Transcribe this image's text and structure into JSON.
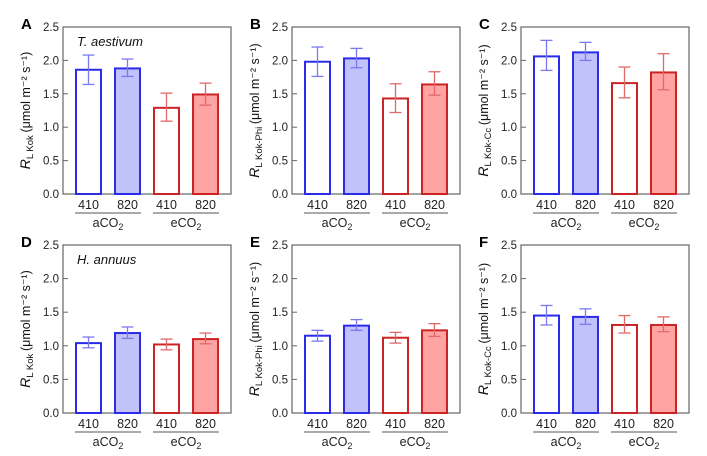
{
  "figure": {
    "colors": {
      "a_edge": "#2b2bea",
      "a_fill": "#c2c2fa",
      "a_err": "#7a7af0",
      "e_edge": "#cc2424",
      "e_fill": "#ffa3a3",
      "e_err": "#e06a6a",
      "frame": "#666666"
    }
  },
  "chart_data": [
    {
      "panel": "A",
      "type": "bar",
      "annotation": "T. aestivum",
      "ylabel": {
        "main": "R",
        "sub": "L Kok",
        "unit": "(μmol m⁻² s⁻¹)"
      },
      "categories": [
        "410",
        "820",
        "410",
        "820"
      ],
      "groups": [
        {
          "label": "aCO",
          "sub": "2"
        },
        {
          "label": "eCO",
          "sub": "2"
        }
      ],
      "fills": [
        "open",
        "filled",
        "open",
        "filled"
      ],
      "values": [
        1.86,
        1.88,
        1.29,
        1.49
      ],
      "err_upper": [
        2.08,
        2.02,
        1.51,
        1.66
      ],
      "err_lower": [
        1.64,
        1.76,
        1.09,
        1.33
      ],
      "ylim": [
        0,
        2.5
      ],
      "yticks": [
        "0.0",
        "0.5",
        "1.0",
        "1.5",
        "2.0",
        "2.5"
      ]
    },
    {
      "panel": "B",
      "type": "bar",
      "annotation": "",
      "ylabel": {
        "main": "R",
        "sub": "L Kok-Phi",
        "unit": "(μmol m⁻² s⁻¹)"
      },
      "categories": [
        "410",
        "820",
        "410",
        "820"
      ],
      "groups": [
        {
          "label": "aCO",
          "sub": "2"
        },
        {
          "label": "eCO",
          "sub": "2"
        }
      ],
      "fills": [
        "open",
        "filled",
        "open",
        "filled"
      ],
      "values": [
        1.98,
        2.03,
        1.43,
        1.64
      ],
      "err_upper": [
        2.2,
        2.18,
        1.65,
        1.83
      ],
      "err_lower": [
        1.76,
        1.89,
        1.22,
        1.48
      ],
      "ylim": [
        0,
        2.5
      ],
      "yticks": [
        "0.0",
        "0.5",
        "1.0",
        "1.5",
        "2.0",
        "2.5"
      ]
    },
    {
      "panel": "C",
      "type": "bar",
      "annotation": "",
      "ylabel": {
        "main": "R",
        "sub": "L Kok-Cc",
        "unit": "(μmol m⁻² s⁻¹)"
      },
      "categories": [
        "410",
        "820",
        "410",
        "820"
      ],
      "groups": [
        {
          "label": "aCO",
          "sub": "2"
        },
        {
          "label": "eCO",
          "sub": "2"
        }
      ],
      "fills": [
        "open",
        "filled",
        "open",
        "filled"
      ],
      "values": [
        2.06,
        2.12,
        1.66,
        1.82
      ],
      "err_upper": [
        2.3,
        2.27,
        1.9,
        2.1
      ],
      "err_lower": [
        1.85,
        2.0,
        1.44,
        1.56
      ],
      "ylim": [
        0,
        2.5
      ],
      "yticks": [
        "0.0",
        "0.5",
        "1.0",
        "1.5",
        "2.0",
        "2.5"
      ]
    },
    {
      "panel": "D",
      "type": "bar",
      "annotation": "H. annuus",
      "ylabel": {
        "main": "R",
        "sub": "L Kok",
        "unit": "(μmol m⁻² s⁻¹)"
      },
      "categories": [
        "410",
        "820",
        "410",
        "820"
      ],
      "groups": [
        {
          "label": "aCO",
          "sub": "2"
        },
        {
          "label": "eCO",
          "sub": "2"
        }
      ],
      "fills": [
        "open",
        "filled",
        "open",
        "filled"
      ],
      "values": [
        1.04,
        1.19,
        1.02,
        1.1
      ],
      "err_upper": [
        1.13,
        1.28,
        1.1,
        1.19
      ],
      "err_lower": [
        0.97,
        1.11,
        0.94,
        1.03
      ],
      "ylim": [
        0,
        2.5
      ],
      "yticks": [
        "0.0",
        "0.5",
        "1.0",
        "1.5",
        "2.0",
        "2.5"
      ]
    },
    {
      "panel": "E",
      "type": "bar",
      "annotation": "",
      "ylabel": {
        "main": "R",
        "sub": "L Kok-Phi",
        "unit": "(μmol m⁻² s⁻¹)"
      },
      "categories": [
        "410",
        "820",
        "410",
        "820"
      ],
      "groups": [
        {
          "label": "aCO",
          "sub": "2"
        },
        {
          "label": "eCO",
          "sub": "2"
        }
      ],
      "fills": [
        "open",
        "filled",
        "open",
        "filled"
      ],
      "values": [
        1.15,
        1.3,
        1.12,
        1.23
      ],
      "err_upper": [
        1.23,
        1.39,
        1.2,
        1.33
      ],
      "err_lower": [
        1.07,
        1.23,
        1.04,
        1.14
      ],
      "ylim": [
        0,
        2.5
      ],
      "yticks": [
        "0.0",
        "0.5",
        "1.0",
        "1.5",
        "2.0",
        "2.5"
      ]
    },
    {
      "panel": "F",
      "type": "bar",
      "annotation": "",
      "ylabel": {
        "main": "R",
        "sub": "L Kok-Cc",
        "unit": "(μmol m⁻² s⁻¹)"
      },
      "categories": [
        "410",
        "820",
        "410",
        "820"
      ],
      "groups": [
        {
          "label": "aCO",
          "sub": "2"
        },
        {
          "label": "eCO",
          "sub": "2"
        }
      ],
      "fills": [
        "open",
        "filled",
        "open",
        "filled"
      ],
      "values": [
        1.45,
        1.43,
        1.31,
        1.31
      ],
      "err_upper": [
        1.6,
        1.55,
        1.45,
        1.43
      ],
      "err_lower": [
        1.31,
        1.32,
        1.19,
        1.21
      ],
      "ylim": [
        0,
        2.5
      ],
      "yticks": [
        "0.0",
        "0.5",
        "1.0",
        "1.5",
        "2.0",
        "2.5"
      ]
    }
  ]
}
